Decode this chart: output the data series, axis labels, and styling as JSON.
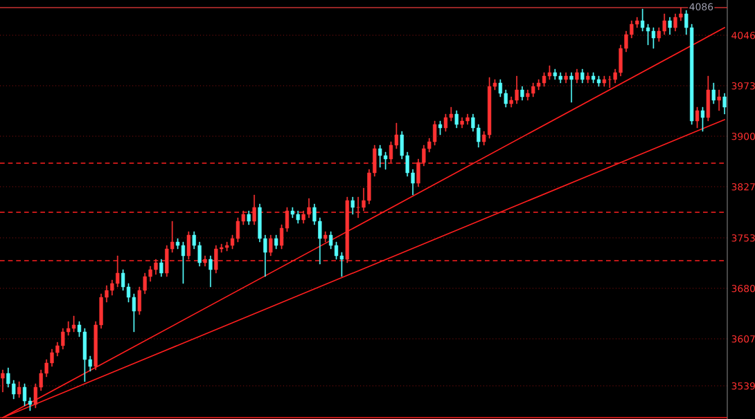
{
  "chart_data": {
    "type": "candlestick",
    "categories": [
      null,
      null,
      null,
      null,
      null,
      null,
      null,
      null,
      null,
      null,
      null,
      null,
      null,
      null,
      null,
      null,
      null,
      null,
      null,
      null,
      null,
      null,
      null,
      null,
      null,
      null,
      null,
      null,
      null,
      null,
      null,
      null,
      null,
      null,
      null,
      null,
      null,
      null,
      null,
      null,
      null,
      null,
      null,
      null,
      null,
      null,
      null,
      null,
      null,
      null,
      null,
      null,
      null,
      null,
      null,
      null,
      null,
      null,
      null,
      null,
      null,
      null,
      null,
      null,
      null,
      null,
      null,
      null,
      null,
      null,
      null,
      null,
      null,
      null,
      null,
      null,
      null,
      null,
      null,
      null,
      null,
      null,
      null,
      null,
      null,
      null,
      null,
      null,
      null,
      null,
      null,
      null,
      null,
      null,
      null,
      null,
      null,
      null,
      null,
      null,
      null,
      null,
      null,
      null,
      null,
      null,
      null,
      null,
      null,
      null,
      null,
      null,
      null,
      null,
      null,
      null,
      null,
      null,
      null,
      null,
      null,
      null,
      null,
      null,
      null,
      null,
      null,
      null,
      null,
      null,
      null,
      null,
      null
    ],
    "ohlc": [
      [
        3550,
        3562,
        3530,
        3557
      ],
      [
        3557,
        3565,
        3537,
        3542
      ],
      [
        3542,
        3547,
        3520,
        3527
      ],
      [
        3527,
        3545,
        3522,
        3537
      ],
      [
        3537,
        3542,
        3510,
        3517
      ],
      [
        3517,
        3522,
        3503,
        3512
      ],
      [
        3512,
        3542,
        3507,
        3537
      ],
      [
        3537,
        3562,
        3532,
        3557
      ],
      [
        3557,
        3577,
        3552,
        3572
      ],
      [
        3572,
        3592,
        3567,
        3587
      ],
      [
        3587,
        3602,
        3582,
        3597
      ],
      [
        3597,
        3622,
        3592,
        3617
      ],
      [
        3617,
        3632,
        3612,
        3622
      ],
      [
        3622,
        3640,
        3617,
        3627
      ],
      [
        3627,
        3632,
        3610,
        3617
      ],
      [
        3617,
        3622,
        3545,
        3577
      ],
      [
        3577,
        3582,
        3560,
        3567
      ],
      [
        3567,
        3632,
        3562,
        3627
      ],
      [
        3627,
        3672,
        3622,
        3667
      ],
      [
        3667,
        3684,
        3660,
        3677
      ],
      [
        3677,
        3692,
        3670,
        3687
      ],
      [
        3687,
        3727,
        3682,
        3702
      ],
      [
        3702,
        3707,
        3677,
        3682
      ],
      [
        3682,
        3687,
        3660,
        3667
      ],
      [
        3667,
        3672,
        3617,
        3647
      ],
      [
        3647,
        3682,
        3642,
        3677
      ],
      [
        3677,
        3702,
        3672,
        3697
      ],
      [
        3697,
        3712,
        3690,
        3707
      ],
      [
        3707,
        3722,
        3700,
        3717
      ],
      [
        3717,
        3722,
        3697,
        3702
      ],
      [
        3702,
        3742,
        3697,
        3737
      ],
      [
        3737,
        3777,
        3732,
        3747
      ],
      [
        3747,
        3752,
        3737,
        3742
      ],
      [
        3742,
        3747,
        3687,
        3727
      ],
      [
        3727,
        3762,
        3722,
        3757
      ],
      [
        3757,
        3762,
        3737,
        3742
      ],
      [
        3742,
        3747,
        3712,
        3717
      ],
      [
        3717,
        3727,
        3712,
        3722
      ],
      [
        3722,
        3727,
        3682,
        3707
      ],
      [
        3707,
        3742,
        3702,
        3737
      ],
      [
        3737,
        3744,
        3732,
        3739
      ],
      [
        3739,
        3747,
        3734,
        3742
      ],
      [
        3742,
        3757,
        3737,
        3752
      ],
      [
        3752,
        3782,
        3747,
        3777
      ],
      [
        3777,
        3792,
        3772,
        3787
      ],
      [
        3787,
        3792,
        3772,
        3777
      ],
      [
        3777,
        3815,
        3772,
        3797
      ],
      [
        3797,
        3802,
        3747,
        3752
      ],
      [
        3752,
        3757,
        3697,
        3732
      ],
      [
        3732,
        3757,
        3727,
        3752
      ],
      [
        3752,
        3757,
        3737,
        3742
      ],
      [
        3742,
        3772,
        3737,
        3767
      ],
      [
        3767,
        3797,
        3762,
        3792
      ],
      [
        3792,
        3797,
        3782,
        3787
      ],
      [
        3787,
        3792,
        3774,
        3779
      ],
      [
        3779,
        3792,
        3774,
        3787
      ],
      [
        3787,
        3810,
        3782,
        3797
      ],
      [
        3797,
        3802,
        3772,
        3777
      ],
      [
        3777,
        3782,
        3715,
        3752
      ],
      [
        3752,
        3762,
        3747,
        3757
      ],
      [
        3757,
        3762,
        3737,
        3742
      ],
      [
        3742,
        3747,
        3722,
        3727
      ],
      [
        3727,
        3732,
        3697,
        3722
      ],
      [
        3722,
        3812,
        3717,
        3807
      ],
      [
        3807,
        3812,
        3787,
        3797
      ],
      [
        3797,
        3812,
        3782,
        3797
      ],
      [
        3797,
        3825,
        3792,
        3807
      ],
      [
        3807,
        3852,
        3802,
        3847
      ],
      [
        3847,
        3887,
        3842,
        3882
      ],
      [
        3882,
        3887,
        3855,
        3872
      ],
      [
        3872,
        3877,
        3852,
        3867
      ],
      [
        3867,
        3892,
        3862,
        3887
      ],
      [
        3887,
        3919,
        3882,
        3902
      ],
      [
        3902,
        3907,
        3867,
        3872
      ],
      [
        3872,
        3877,
        3842,
        3847
      ],
      [
        3847,
        3852,
        3815,
        3832
      ],
      [
        3832,
        3867,
        3827,
        3862
      ],
      [
        3862,
        3887,
        3857,
        3882
      ],
      [
        3882,
        3897,
        3877,
        3892
      ],
      [
        3892,
        3922,
        3887,
        3917
      ],
      [
        3917,
        3922,
        3902,
        3912
      ],
      [
        3912,
        3932,
        3907,
        3927
      ],
      [
        3927,
        3942,
        3922,
        3932
      ],
      [
        3932,
        3937,
        3912,
        3917
      ],
      [
        3917,
        3927,
        3912,
        3922
      ],
      [
        3922,
        3932,
        3917,
        3927
      ],
      [
        3927,
        3932,
        3907,
        3912
      ],
      [
        3912,
        3917,
        3884,
        3892
      ],
      [
        3892,
        3907,
        3887,
        3902
      ],
      [
        3902,
        3985,
        3897,
        3972
      ],
      [
        3972,
        3982,
        3967,
        3977
      ],
      [
        3977,
        3982,
        3957,
        3962
      ],
      [
        3962,
        3967,
        3942,
        3947
      ],
      [
        3947,
        3957,
        3942,
        3952
      ],
      [
        3952,
        3987,
        3947,
        3967
      ],
      [
        3967,
        3972,
        3952,
        3957
      ],
      [
        3957,
        3967,
        3952,
        3962
      ],
      [
        3962,
        3977,
        3957,
        3972
      ],
      [
        3972,
        3982,
        3967,
        3977
      ],
      [
        3977,
        3992,
        3972,
        3987
      ],
      [
        3987,
        4002,
        3982,
        3992
      ],
      [
        3992,
        3997,
        3982,
        3987
      ],
      [
        3987,
        3992,
        3977,
        3982
      ],
      [
        3982,
        3992,
        3977,
        3987
      ],
      [
        3987,
        3992,
        3949,
        3982
      ],
      [
        3982,
        3997,
        3977,
        3992
      ],
      [
        3992,
        3997,
        3977,
        3982
      ],
      [
        3982,
        3992,
        3977,
        3987
      ],
      [
        3987,
        3992,
        3977,
        3982
      ],
      [
        3982,
        3987,
        3972,
        3977
      ],
      [
        3977,
        3987,
        3972,
        3982
      ],
      [
        3982,
        3987,
        3970,
        3982
      ],
      [
        3982,
        3997,
        3977,
        3992
      ],
      [
        3992,
        4032,
        3987,
        4027
      ],
      [
        4027,
        4052,
        4022,
        4047
      ],
      [
        4047,
        4067,
        4042,
        4062
      ],
      [
        4062,
        4072,
        4057,
        4067
      ],
      [
        4067,
        4084,
        4052,
        4057
      ],
      [
        4057,
        4062,
        4032,
        4052
      ],
      [
        4052,
        4057,
        4027,
        4042
      ],
      [
        4042,
        4057,
        4037,
        4052
      ],
      [
        4052,
        4077,
        4047,
        4067
      ],
      [
        4067,
        4072,
        4047,
        4057
      ],
      [
        4057,
        4077,
        4052,
        4072
      ],
      [
        4072,
        4086,
        4067,
        4077
      ],
      [
        4077,
        4082,
        4047,
        4057
      ],
      [
        4057,
        4062,
        3917,
        3922
      ],
      [
        3922,
        3942,
        3912,
        3937
      ],
      [
        3937,
        3942,
        3907,
        3927
      ],
      [
        3927,
        3987,
        3922,
        3967
      ],
      [
        3967,
        3977,
        3947,
        3952
      ],
      [
        3952,
        3967,
        3937,
        3957
      ],
      [
        3957,
        3962,
        3932,
        3942
      ]
    ],
    "colors": [
      "#ff3232",
      "#54fcfc",
      "#54fcfc",
      "#ff3232",
      "#54fcfc",
      "#54fcfc",
      "#ff3232",
      "#ff3232",
      "#ff3232",
      "#ff3232",
      "#ff3232",
      "#ff3232",
      "#ff3232",
      "#ff3232",
      "#54fcfc",
      "#54fcfc",
      "#54fcfc",
      "#ff3232",
      "#ff3232",
      "#ff3232",
      "#ff3232",
      "#ff3232",
      "#54fcfc",
      "#54fcfc",
      "#54fcfc",
      "#ff3232",
      "#ff3232",
      "#ff3232",
      "#ff3232",
      "#54fcfc",
      "#ff3232",
      "#ff3232",
      "#54fcfc",
      "#54fcfc",
      "#ff3232",
      "#54fcfc",
      "#54fcfc",
      "#ff3232",
      "#54fcfc",
      "#ff3232",
      "#ff3232",
      "#ff3232",
      "#ff3232",
      "#ff3232",
      "#ff3232",
      "#54fcfc",
      "#ff3232",
      "#54fcfc",
      "#54fcfc",
      "#ff3232",
      "#54fcfc",
      "#ff3232",
      "#ff3232",
      "#54fcfc",
      "#54fcfc",
      "#ff3232",
      "#ff3232",
      "#54fcfc",
      "#54fcfc",
      "#ff3232",
      "#54fcfc",
      "#54fcfc",
      "#54fcfc",
      "#ff3232",
      "#54fcfc",
      "#ff3232",
      "#ff3232",
      "#ff3232",
      "#ff3232",
      "#54fcfc",
      "#54fcfc",
      "#ff3232",
      "#ff3232",
      "#54fcfc",
      "#54fcfc",
      "#54fcfc",
      "#ff3232",
      "#ff3232",
      "#ff3232",
      "#ff3232",
      "#54fcfc",
      "#ff3232",
      "#ff3232",
      "#54fcfc",
      "#ff3232",
      "#ff3232",
      "#54fcfc",
      "#54fcfc",
      "#ff3232",
      "#ff3232",
      "#ff3232",
      "#54fcfc",
      "#54fcfc",
      "#ff3232",
      "#ff3232",
      "#54fcfc",
      "#ff3232",
      "#ff3232",
      "#ff3232",
      "#ff3232",
      "#ff3232",
      "#54fcfc",
      "#54fcfc",
      "#ff3232",
      "#54fcfc",
      "#ff3232",
      "#54fcfc",
      "#ff3232",
      "#54fcfc",
      "#54fcfc",
      "#ff3232",
      "#ff3232",
      "#ff3232",
      "#ff3232",
      "#ff3232",
      "#ff3232",
      "#ff3232",
      "#54fcfc",
      "#54fcfc",
      "#54fcfc",
      "#ff3232",
      "#ff3232",
      "#54fcfc",
      "#ff3232",
      "#ff3232",
      "#54fcfc",
      "#54fcfc",
      "#ff3232",
      "#54fcfc",
      "#ff3232",
      "#54fcfc",
      "#ff3232",
      "#54fcfc"
    ],
    "series": [
      {
        "type": "line",
        "color": "#ff1e1e",
        "values": [
          3493,
          null,
          null,
          null,
          null,
          null,
          null,
          null,
          null,
          null,
          null,
          null,
          null,
          null,
          null,
          null,
          null,
          null,
          null,
          null,
          null,
          null,
          null,
          null,
          null,
          null,
          null,
          null,
          null,
          null,
          null,
          null,
          null,
          null,
          null,
          null,
          null,
          null,
          null,
          null,
          null,
          null,
          null,
          null,
          null,
          null,
          null,
          null,
          null,
          null,
          null,
          null,
          null,
          null,
          null,
          null,
          null,
          null,
          null,
          null,
          null,
          null,
          null,
          null,
          null,
          null,
          null,
          null,
          null,
          null,
          null,
          null,
          null,
          null,
          null,
          null,
          null,
          null,
          null,
          null,
          null,
          null,
          null,
          null,
          null,
          null,
          null,
          null,
          null,
          null,
          null,
          null,
          null,
          null,
          null,
          null,
          null,
          null,
          null,
          null,
          null,
          null,
          null,
          null,
          null,
          null,
          null,
          null,
          null,
          null,
          null,
          null,
          null,
          null,
          null,
          null,
          null,
          null,
          null,
          null,
          null,
          null,
          null,
          null,
          null,
          null,
          null,
          null,
          null,
          null,
          null,
          null,
          4057
        ]
      },
      {
        "type": "line",
        "color": "#ff1e1e",
        "values": [
          3493,
          null,
          null,
          null,
          null,
          null,
          null,
          null,
          null,
          null,
          null,
          null,
          null,
          null,
          null,
          null,
          null,
          null,
          null,
          null,
          null,
          null,
          null,
          null,
          null,
          null,
          null,
          null,
          null,
          null,
          null,
          null,
          null,
          null,
          null,
          null,
          null,
          null,
          null,
          null,
          null,
          null,
          null,
          null,
          null,
          null,
          null,
          null,
          null,
          null,
          null,
          null,
          null,
          null,
          null,
          null,
          null,
          null,
          null,
          null,
          null,
          null,
          null,
          null,
          null,
          null,
          null,
          null,
          null,
          null,
          null,
          null,
          null,
          null,
          null,
          null,
          null,
          null,
          null,
          null,
          null,
          null,
          null,
          null,
          null,
          null,
          null,
          null,
          null,
          null,
          null,
          null,
          null,
          null,
          null,
          null,
          null,
          null,
          null,
          null,
          null,
          null,
          null,
          null,
          null,
          null,
          null,
          null,
          null,
          null,
          null,
          null,
          null,
          null,
          null,
          null,
          null,
          null,
          null,
          null,
          null,
          null,
          null,
          null,
          null,
          null,
          null,
          null,
          null,
          null,
          null,
          null,
          3924
        ]
      }
    ],
    "ylim": [
      3491,
      4097
    ],
    "yticks": [
      3539,
      3607,
      3680,
      3753,
      3827,
      3900,
      3973,
      4046
    ],
    "grid": "y",
    "ref_lines": [
      {
        "axis": "y",
        "value": 3861,
        "color": "#ff2020",
        "line_style": "dashed"
      },
      {
        "axis": "y",
        "value": 3790,
        "color": "#ff2020",
        "line_style": "dashed"
      },
      {
        "axis": "y",
        "value": 3720,
        "color": "#ff2020",
        "line_style": "dashed"
      },
      {
        "axis": "y",
        "value": 4086,
        "color": "#c83030",
        "line_style": "solid"
      },
      {
        "axis": "y",
        "value": 3493,
        "color": "#ff1e1e",
        "line_style": "solid"
      }
    ],
    "annotations": [
      {
        "text": "4086",
        "y": 4086
      }
    ]
  }
}
